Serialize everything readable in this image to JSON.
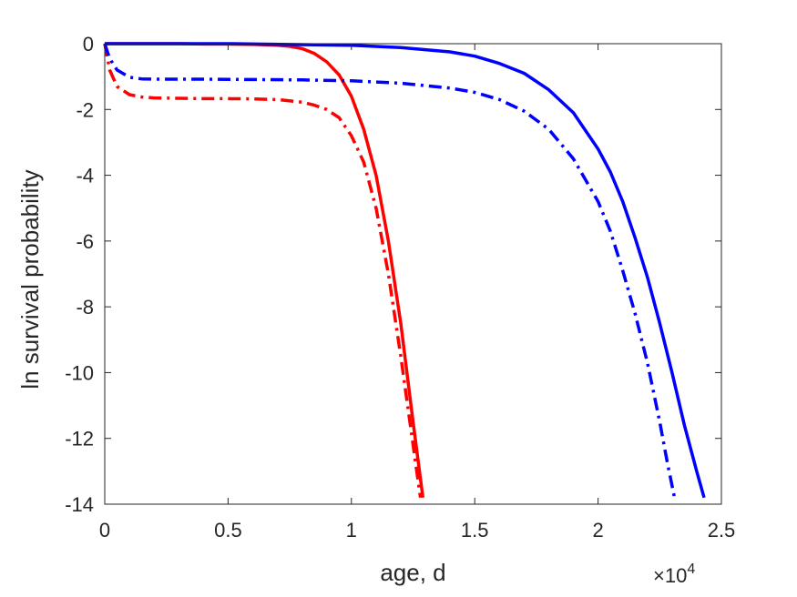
{
  "chart_data": {
    "type": "line",
    "title": "",
    "xlabel": "age, d",
    "ylabel": "ln survival probability",
    "x_multiplier_label": "×10",
    "x_multiplier_power": "4",
    "xlim": [
      0,
      2.5
    ],
    "ylim": [
      -14,
      0
    ],
    "x_ticks": [
      0,
      0.5,
      1,
      1.5,
      2,
      2.5
    ],
    "x_tick_labels": [
      "0",
      "0.5",
      "1",
      "1.5",
      "2",
      "2.5"
    ],
    "y_ticks": [
      0,
      -2,
      -4,
      -6,
      -8,
      -10,
      -12,
      -14
    ],
    "y_tick_labels": [
      "0",
      "-2",
      "-4",
      "-6",
      "-8",
      "-10",
      "-12",
      "-14"
    ],
    "grid": false,
    "box": true,
    "series": [
      {
        "color": "#ff0000",
        "style": "solid",
        "x": [
          0,
          0.1,
          0.2,
          0.3,
          0.4,
          0.5,
          0.6,
          0.7,
          0.75,
          0.8,
          0.85,
          0.9,
          0.95,
          1.0,
          1.05,
          1.1,
          1.15,
          1.2,
          1.25,
          1.29
        ],
        "y": [
          0,
          0,
          0,
          0,
          -0.01,
          -0.01,
          -0.02,
          -0.05,
          -0.08,
          -0.15,
          -0.3,
          -0.55,
          -0.95,
          -1.6,
          -2.6,
          -4.0,
          -6.0,
          -8.5,
          -11.5,
          -13.8
        ]
      },
      {
        "color": "#ff0000",
        "style": "dashdot",
        "x": [
          0,
          0.02,
          0.05,
          0.1,
          0.15,
          0.2,
          0.3,
          0.4,
          0.5,
          0.6,
          0.7,
          0.8,
          0.85,
          0.9,
          0.95,
          1.0,
          1.05,
          1.1,
          1.15,
          1.2,
          1.25,
          1.28
        ],
        "y": [
          0,
          -0.8,
          -1.3,
          -1.55,
          -1.62,
          -1.65,
          -1.66,
          -1.67,
          -1.67,
          -1.68,
          -1.7,
          -1.78,
          -1.87,
          -2.0,
          -2.25,
          -2.8,
          -3.6,
          -5.0,
          -7.0,
          -9.5,
          -12.2,
          -13.8
        ]
      },
      {
        "color": "#0000ff",
        "style": "solid",
        "x": [
          0,
          0.5,
          1.0,
          1.2,
          1.4,
          1.5,
          1.6,
          1.7,
          1.8,
          1.9,
          2.0,
          2.05,
          2.1,
          2.15,
          2.2,
          2.25,
          2.3,
          2.35,
          2.4,
          2.43
        ],
        "y": [
          0,
          0,
          -0.05,
          -0.12,
          -0.25,
          -0.38,
          -0.6,
          -0.9,
          -1.4,
          -2.1,
          -3.2,
          -3.9,
          -4.8,
          -5.9,
          -7.1,
          -8.5,
          -10.0,
          -11.6,
          -13.0,
          -13.8
        ]
      },
      {
        "color": "#0000ff",
        "style": "dashdot",
        "x": [
          0,
          0.02,
          0.05,
          0.1,
          0.15,
          0.2,
          0.4,
          0.6,
          0.8,
          1.0,
          1.2,
          1.4,
          1.5,
          1.6,
          1.7,
          1.8,
          1.9,
          2.0,
          2.05,
          2.1,
          2.15,
          2.2,
          2.25,
          2.28,
          2.31
        ],
        "y": [
          0,
          -0.45,
          -0.8,
          -1.02,
          -1.07,
          -1.08,
          -1.08,
          -1.09,
          -1.1,
          -1.13,
          -1.2,
          -1.35,
          -1.48,
          -1.7,
          -2.05,
          -2.6,
          -3.5,
          -4.8,
          -5.7,
          -6.9,
          -8.2,
          -9.7,
          -11.5,
          -12.7,
          -13.8
        ]
      }
    ]
  }
}
